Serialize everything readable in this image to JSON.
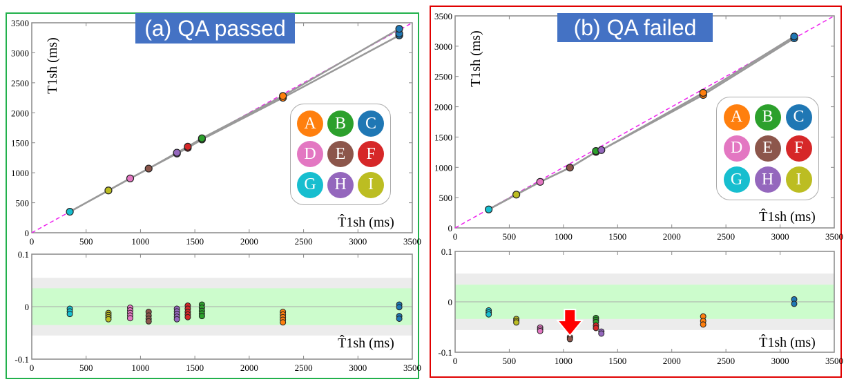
{
  "colors": {
    "A": "#ff7f0e",
    "B": "#2ca02c",
    "C": "#1f77b4",
    "D": "#e377c2",
    "E": "#8c564b",
    "F": "#d62728",
    "G": "#17becf",
    "H": "#9467bd",
    "I": "#bcbd22"
  },
  "legend_labels": [
    "A",
    "B",
    "C",
    "D",
    "E",
    "F",
    "G",
    "H",
    "I"
  ],
  "frame_colors": {
    "passed": "#22b14c",
    "failed": "#e00000"
  },
  "chart_data": [
    {
      "title": "(a) QA passed",
      "type": "scatter",
      "ylabel": "T1sh (ms)",
      "xlabel": "T̂1sh (ms)",
      "xlim": [
        0,
        3500
      ],
      "ylim": [
        0,
        3500
      ],
      "xticks": [
        0,
        500,
        1000,
        1500,
        2000,
        2500,
        3000,
        3500
      ],
      "yticks": [
        0,
        500,
        1000,
        1500,
        2000,
        2500,
        3000,
        3500
      ],
      "identity_line": true,
      "points": [
        {
          "cls": "G",
          "x": 350,
          "y": [
            350
          ]
        },
        {
          "cls": "I",
          "x": 705,
          "y": [
            705
          ]
        },
        {
          "cls": "D",
          "x": 905,
          "y": [
            905
          ]
        },
        {
          "cls": "E",
          "x": 1075,
          "y": [
            1070
          ]
        },
        {
          "cls": "H",
          "x": 1335,
          "y": [
            1320,
            1335
          ]
        },
        {
          "cls": "F",
          "x": 1435,
          "y": [
            1415,
            1435
          ]
        },
        {
          "cls": "B",
          "x": 1565,
          "y": [
            1555,
            1575
          ]
        },
        {
          "cls": "A",
          "x": 2310,
          "y": [
            2250,
            2280
          ]
        },
        {
          "cls": "C",
          "x": 3380,
          "y": [
            3290,
            3320,
            3400
          ]
        }
      ],
      "residual": {
        "xlabel": "T̂1sh (ms)",
        "ylim": [
          -0.1,
          0.1
        ],
        "yticks": [
          -0.1,
          0,
          0.1
        ],
        "outer_band": 0.055,
        "inner_band": 0.035,
        "points": [
          {
            "cls": "G",
            "x": 350,
            "y": [
              -0.004,
              -0.009,
              -0.014
            ]
          },
          {
            "cls": "I",
            "x": 705,
            "y": [
              -0.012,
              -0.016,
              -0.02,
              -0.024
            ]
          },
          {
            "cls": "D",
            "x": 905,
            "y": [
              -0.002,
              -0.007,
              -0.012,
              -0.017,
              -0.022
            ]
          },
          {
            "cls": "E",
            "x": 1075,
            "y": [
              -0.01,
              -0.017,
              -0.023,
              -0.028
            ]
          },
          {
            "cls": "H",
            "x": 1335,
            "y": [
              -0.004,
              -0.009,
              -0.014,
              -0.019,
              -0.024
            ]
          },
          {
            "cls": "F",
            "x": 1435,
            "y": [
              0.002,
              -0.004,
              -0.01,
              -0.015,
              -0.02
            ]
          },
          {
            "cls": "B",
            "x": 1565,
            "y": [
              0.004,
              -0.002,
              -0.008,
              -0.013,
              -0.018
            ]
          },
          {
            "cls": "A",
            "x": 2310,
            "y": [
              -0.01,
              -0.015,
              -0.02,
              -0.025,
              -0.03
            ]
          },
          {
            "cls": "C",
            "x": 3380,
            "y": [
              0.004,
              -0.001,
              -0.018,
              -0.023
            ]
          }
        ]
      }
    },
    {
      "title": "(b) QA failed",
      "type": "scatter",
      "ylabel": "T1sh (ms)",
      "xlabel": "T̂1sh (ms)",
      "xlim": [
        0,
        3500
      ],
      "ylim": [
        0,
        3500
      ],
      "xticks": [
        0,
        500,
        1000,
        1500,
        2000,
        2500,
        3000,
        3500
      ],
      "yticks": [
        0,
        500,
        1000,
        1500,
        2000,
        2500,
        3000,
        3500
      ],
      "identity_line": true,
      "points": [
        {
          "cls": "G",
          "x": 310,
          "y": [
            305
          ]
        },
        {
          "cls": "I",
          "x": 565,
          "y": [
            550
          ]
        },
        {
          "cls": "D",
          "x": 785,
          "y": [
            760
          ]
        },
        {
          "cls": "E",
          "x": 1060,
          "y": [
            995
          ]
        },
        {
          "cls": "F",
          "x": 1300,
          "y": [
            1255
          ]
        },
        {
          "cls": "B",
          "x": 1300,
          "y": [
            1270
          ]
        },
        {
          "cls": "H",
          "x": 1350,
          "y": [
            1285
          ]
        },
        {
          "cls": "A",
          "x": 2290,
          "y": [
            2195,
            2230
          ]
        },
        {
          "cls": "C",
          "x": 3130,
          "y": [
            3130,
            3160
          ]
        }
      ],
      "residual": {
        "xlabel": "T̂1sh (ms)",
        "ylim": [
          -0.1,
          0.1
        ],
        "yticks": [
          -0.1,
          0,
          0.1
        ],
        "outer_band": 0.056,
        "inner_band": 0.034,
        "highlight": "E",
        "points": [
          {
            "cls": "G",
            "x": 310,
            "y": [
              -0.017,
              -0.021,
              -0.025
            ]
          },
          {
            "cls": "I",
            "x": 565,
            "y": [
              -0.034,
              -0.038,
              -0.041
            ]
          },
          {
            "cls": "D",
            "x": 785,
            "y": [
              -0.051,
              -0.055,
              -0.058
            ]
          },
          {
            "cls": "E",
            "x": 1060,
            "y": [
              -0.07,
              -0.074
            ]
          },
          {
            "cls": "B",
            "x": 1300,
            "y": [
              -0.032,
              -0.036,
              -0.04
            ]
          },
          {
            "cls": "F",
            "x": 1300,
            "y": [
              -0.047,
              -0.052
            ]
          },
          {
            "cls": "H",
            "x": 1350,
            "y": [
              -0.059,
              -0.063
            ]
          },
          {
            "cls": "A",
            "x": 2290,
            "y": [
              -0.029,
              -0.038,
              -0.045
            ]
          },
          {
            "cls": "C",
            "x": 3130,
            "y": [
              0.005,
              -0.004
            ]
          }
        ]
      }
    }
  ]
}
